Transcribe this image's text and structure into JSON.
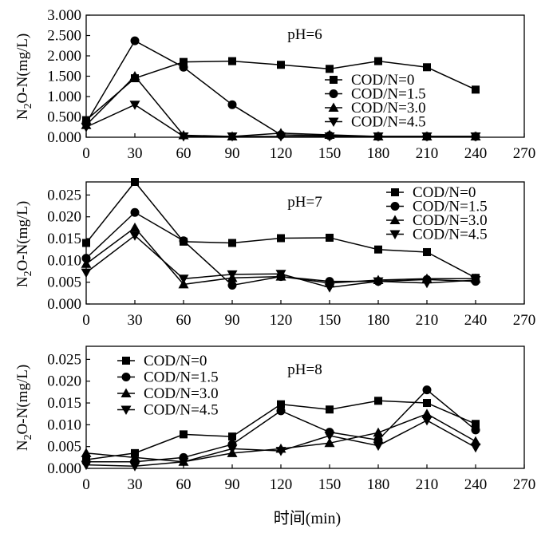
{
  "chart_data": [
    {
      "type": "line",
      "title": "pH=6",
      "xlabel": "时间(min)",
      "ylabel": "N2O-N(mg/L)",
      "ylabel_main": "N",
      "ylabel_sub": "2",
      "ylabel_rest": "O-N(mg/L)",
      "xlim": [
        0,
        270
      ],
      "ylim": [
        0,
        3.0
      ],
      "x_ticks": [
        "0",
        "30",
        "60",
        "90",
        "120",
        "150",
        "180",
        "210",
        "240",
        "270"
      ],
      "y_ticks": [
        {
          "value": 0.0,
          "label": "0.000"
        },
        {
          "value": 0.5,
          "label": "0.500"
        },
        {
          "value": 1.0,
          "label": "1.000"
        },
        {
          "value": 1.5,
          "label": "1.500"
        },
        {
          "value": 2.0,
          "label": "2.000"
        },
        {
          "value": 2.5,
          "label": "2.500"
        },
        {
          "value": 3.0,
          "label": "3.000"
        }
      ],
      "legend_position": "center-right",
      "x": [
        0,
        30,
        60,
        90,
        120,
        150,
        180,
        210,
        240
      ],
      "series": [
        {
          "name": "COD/N=0",
          "marker": "square",
          "values": [
            0.42,
            1.45,
            1.85,
            1.87,
            1.78,
            1.68,
            1.87,
            1.72,
            1.17
          ]
        },
        {
          "name": "COD/N=1.5",
          "marker": "circle",
          "values": [
            0.35,
            2.37,
            1.72,
            0.8,
            0.06,
            0.04,
            0.02,
            0.02,
            0.02
          ]
        },
        {
          "name": "COD/N=3.0",
          "marker": "triangle-up",
          "values": [
            0.3,
            1.5,
            0.05,
            0.02,
            0.1,
            0.06,
            0.02,
            0.02,
            0.02
          ]
        },
        {
          "name": "COD/N=4.5",
          "marker": "triangle-down",
          "values": [
            0.25,
            0.8,
            0.02,
            0.02,
            0.02,
            0.02,
            0.02,
            0.02,
            0.02
          ]
        }
      ]
    },
    {
      "type": "line",
      "title": "pH=7",
      "xlabel": "时间(min)",
      "ylabel": "N2O-N(mg/L)",
      "ylabel_main": "N",
      "ylabel_sub": "2",
      "ylabel_rest": "O-N(mg/L)",
      "xlim": [
        0,
        270
      ],
      "ylim": [
        0,
        0.028
      ],
      "x_ticks": [
        "0",
        "30",
        "60",
        "90",
        "120",
        "150",
        "180",
        "210",
        "240",
        "270"
      ],
      "y_ticks": [
        {
          "value": 0.0,
          "label": "0.000"
        },
        {
          "value": 0.005,
          "label": "0.005"
        },
        {
          "value": 0.01,
          "label": "0.010"
        },
        {
          "value": 0.015,
          "label": "0.015"
        },
        {
          "value": 0.02,
          "label": "0.020"
        },
        {
          "value": 0.025,
          "label": "0.025"
        }
      ],
      "legend_position": "top-right",
      "x": [
        0,
        30,
        60,
        90,
        120,
        150,
        180,
        210,
        240
      ],
      "series": [
        {
          "name": "COD/N=0",
          "marker": "square",
          "values": [
            0.014,
            0.028,
            0.0143,
            0.014,
            0.0151,
            0.0152,
            0.0125,
            0.0119,
            0.006
          ]
        },
        {
          "name": "COD/N=1.5",
          "marker": "circle",
          "values": [
            0.0105,
            0.021,
            0.0145,
            0.0043,
            0.0063,
            0.0052,
            0.0052,
            0.0056,
            0.0052
          ]
        },
        {
          "name": "COD/N=3.0",
          "marker": "triangle-up",
          "values": [
            0.0092,
            0.0175,
            0.0045,
            0.006,
            0.0063,
            0.0048,
            0.0055,
            0.0058,
            0.0058
          ]
        },
        {
          "name": "COD/N=4.5",
          "marker": "triangle-down",
          "values": [
            0.0072,
            0.0157,
            0.0058,
            0.0068,
            0.0069,
            0.0038,
            0.0052,
            0.0048,
            0.0055
          ]
        }
      ]
    },
    {
      "type": "line",
      "title": "pH=8",
      "xlabel": "时间(min)",
      "ylabel": "N2O-N(mg/L)",
      "ylabel_main": "N",
      "ylabel_sub": "2",
      "ylabel_rest": "O-N(mg/L)",
      "xlim": [
        0,
        270
      ],
      "ylim": [
        0,
        0.028
      ],
      "x_ticks": [
        "0",
        "30",
        "60",
        "90",
        "120",
        "150",
        "180",
        "210",
        "240",
        "270"
      ],
      "y_ticks": [
        {
          "value": 0.0,
          "label": "0.000"
        },
        {
          "value": 0.005,
          "label": "0.005"
        },
        {
          "value": 0.01,
          "label": "0.010"
        },
        {
          "value": 0.015,
          "label": "0.015"
        },
        {
          "value": 0.02,
          "label": "0.020"
        },
        {
          "value": 0.025,
          "label": "0.025"
        }
      ],
      "legend_position": "top-left",
      "x": [
        0,
        30,
        60,
        90,
        120,
        150,
        180,
        210,
        240
      ],
      "series": [
        {
          "name": "COD/N=0",
          "marker": "square",
          "values": [
            0.002,
            0.0035,
            0.0078,
            0.0073,
            0.0147,
            0.0135,
            0.0155,
            0.015,
            0.0102
          ]
        },
        {
          "name": "COD/N=1.5",
          "marker": "circle",
          "values": [
            0.0015,
            0.0015,
            0.0025,
            0.0055,
            0.0132,
            0.0083,
            0.0065,
            0.018,
            0.0088
          ]
        },
        {
          "name": "COD/N=3.0",
          "marker": "triangle-up",
          "values": [
            0.0035,
            0.0025,
            0.0015,
            0.0035,
            0.0045,
            0.0058,
            0.0082,
            0.0125,
            0.0062
          ]
        },
        {
          "name": "COD/N=4.5",
          "marker": "triangle-down",
          "values": [
            0.0008,
            0.0005,
            0.0015,
            0.0045,
            0.004,
            0.0075,
            0.0052,
            0.011,
            0.0048
          ]
        }
      ]
    }
  ]
}
